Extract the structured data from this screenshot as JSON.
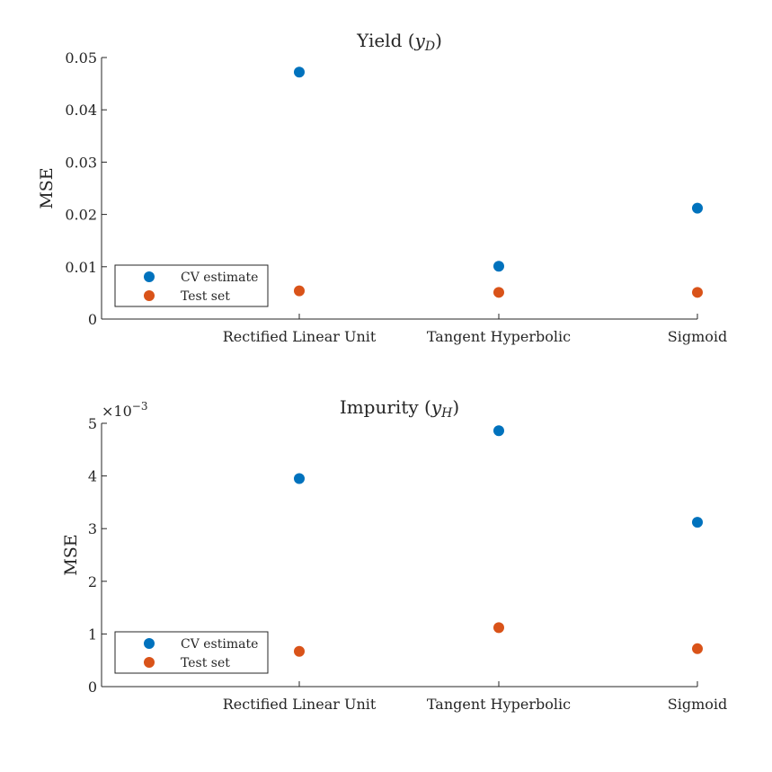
{
  "chart_data": [
    {
      "type": "scatter",
      "title": "Yield",
      "title_symbol": "y",
      "title_subscript": "D",
      "ylabel": "MSE",
      "categories": [
        "Rectified Linear Unit",
        "Tangent Hyperbolic",
        "Sigmoid"
      ],
      "yticks": [
        "0",
        "0.01",
        "0.02",
        "0.03",
        "0.04",
        "0.05"
      ],
      "ylim": [
        0,
        0.05
      ],
      "exponent_label": "",
      "legend_position": "bottom-left",
      "grid": false,
      "series": [
        {
          "name": "CV estimate",
          "color": "#0072BD",
          "values": [
            0.0472,
            0.0101,
            0.0212
          ]
        },
        {
          "name": "Test set",
          "color": "#D95319",
          "values": [
            0.0054,
            0.0051,
            0.0051
          ]
        }
      ]
    },
    {
      "type": "scatter",
      "title": "Impurity",
      "title_symbol": "y",
      "title_subscript": "H",
      "ylabel": "MSE",
      "categories": [
        "Rectified Linear Unit",
        "Tangent Hyperbolic",
        "Sigmoid"
      ],
      "yticks": [
        "0",
        "1",
        "2",
        "3",
        "4",
        "5"
      ],
      "ylim": [
        0,
        5
      ],
      "exponent_label": "×10",
      "exponent_power": "−3",
      "legend_position": "bottom-left",
      "grid": false,
      "series": [
        {
          "name": "CV estimate",
          "color": "#0072BD",
          "values": [
            3.95,
            4.86,
            3.12
          ]
        },
        {
          "name": "Test set",
          "color": "#D95319",
          "values": [
            0.67,
            1.12,
            0.72
          ]
        }
      ]
    }
  ]
}
